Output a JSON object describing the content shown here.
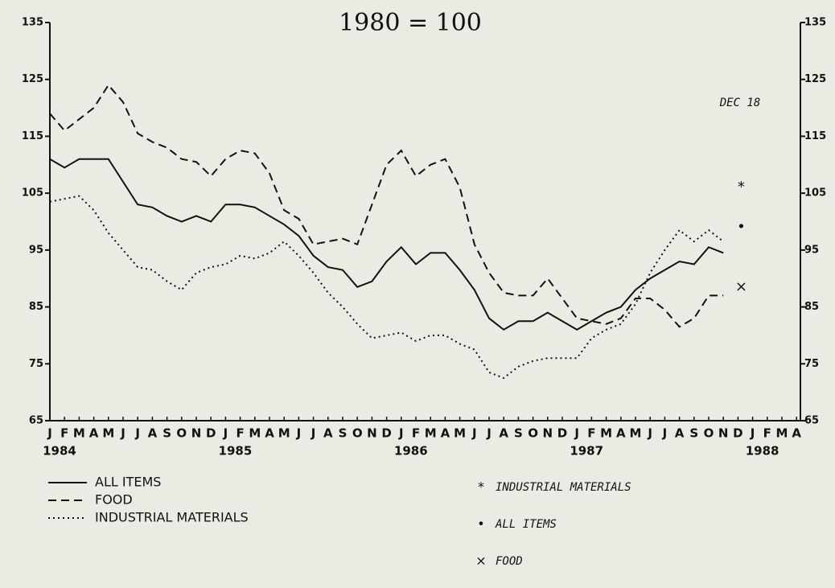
{
  "chart_data": {
    "type": "line",
    "title": "1980 = 100",
    "categories": [
      "J",
      "F",
      "M",
      "A",
      "M",
      "J",
      "J",
      "A",
      "S",
      "O",
      "N",
      "D",
      "J",
      "F",
      "M",
      "A",
      "M",
      "J",
      "J",
      "A",
      "S",
      "O",
      "N",
      "D",
      "J",
      "F",
      "M",
      "A",
      "M",
      "J",
      "J",
      "A",
      "S",
      "O",
      "N",
      "D",
      "J",
      "F",
      "M",
      "A",
      "M",
      "J",
      "J",
      "A",
      "S",
      "O",
      "N",
      "D",
      "J",
      "F",
      "M",
      "A"
    ],
    "years": [
      "1984",
      "1985",
      "1986",
      "1987",
      "1988"
    ],
    "series": [
      {
        "name": "ALL ITEMS",
        "color": "#111111",
        "dash": "solid",
        "values": [
          111,
          109.5,
          111,
          111,
          111,
          107,
          103,
          102.5,
          101,
          100,
          101,
          100,
          103,
          103,
          102.5,
          101,
          99.5,
          97.5,
          94,
          92,
          91.5,
          88.5,
          89.5,
          93,
          95.5,
          92.5,
          94.5,
          94.5,
          91.5,
          88,
          83,
          81,
          82.5,
          82.5,
          84,
          82.5,
          81,
          82.5,
          84,
          85,
          88,
          90,
          91.5,
          93,
          92.5,
          95.5,
          94.5,
          null,
          null,
          null,
          null,
          null
        ]
      },
      {
        "name": "FOOD",
        "color": "#111111",
        "dash": "dashed",
        "values": [
          119,
          116,
          118,
          120,
          124,
          121,
          115.5,
          114,
          113,
          111,
          110.5,
          108,
          111,
          112.5,
          112,
          108.5,
          102,
          100.5,
          96,
          96.5,
          97,
          96,
          103,
          110,
          112.5,
          108,
          110,
          111,
          106,
          96,
          91,
          87.5,
          87,
          87,
          90,
          86.5,
          83,
          82.5,
          82,
          83,
          86.5,
          86.5,
          84.5,
          81.5,
          83,
          87,
          87,
          null,
          null,
          null,
          null,
          null
        ]
      },
      {
        "name": "INDUSTRIAL MATERIALS",
        "color": "#111111",
        "dash": "dotted",
        "values": [
          103.5,
          104,
          104.5,
          102,
          98,
          95,
          92,
          91.5,
          89.5,
          88,
          91,
          92,
          92.5,
          94,
          93.5,
          94.5,
          96.5,
          94,
          91,
          87.5,
          85,
          82,
          79.5,
          80,
          80.5,
          79,
          80,
          80,
          78.5,
          77.5,
          73.5,
          72.5,
          74.5,
          75.5,
          76,
          76,
          76,
          79.5,
          81,
          82,
          85.5,
          91,
          95,
          98.5,
          96.5,
          98.5,
          96.5,
          null,
          null,
          null,
          null,
          null
        ]
      }
    ],
    "annotation": "DEC 18",
    "dec_points": [
      {
        "symbol": "*",
        "label": "INDUSTRIAL MATERIALS",
        "value": 106
      },
      {
        "symbol": "•",
        "label": "ALL ITEMS",
        "value": 99
      },
      {
        "symbol": "×",
        "label": "FOOD",
        "value": 88.5
      }
    ],
    "ylim": [
      65,
      135
    ],
    "yticks": [
      65,
      75,
      85,
      95,
      105,
      115,
      125,
      135
    ],
    "y2lim": [
      65,
      135
    ],
    "y2ticks": [
      65,
      75,
      85,
      95,
      105,
      115,
      125,
      135
    ]
  }
}
